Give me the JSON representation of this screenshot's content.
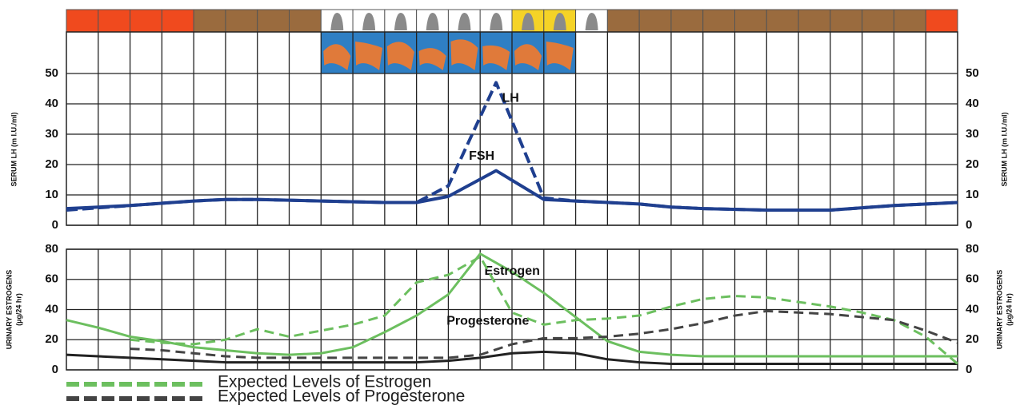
{
  "chart_data": [
    {
      "type": "line",
      "ylabel": [
        "SERUM LH (m I.U./ml)"
      ],
      "xlim": [
        0,
        28
      ],
      "ylim": [
        0,
        50
      ],
      "yticks": [
        0,
        10,
        20,
        30,
        40,
        50
      ],
      "grid": true,
      "x": [
        0,
        2,
        4,
        5,
        6,
        8,
        10,
        11,
        12,
        13.5,
        15,
        16,
        18,
        19,
        20,
        22,
        24,
        26,
        28
      ],
      "series": [
        {
          "name": "LH",
          "color": "#1f3f8f",
          "style": "dashed",
          "label": "inline",
          "values": [
            5,
            6.5,
            8,
            8.5,
            8.5,
            8,
            7.5,
            7.5,
            13,
            47,
            9,
            8,
            7,
            6,
            5.5,
            5,
            5,
            6.5,
            7.5
          ]
        },
        {
          "name": "FSH",
          "color": "#1f3f8f",
          "style": "solid",
          "label": "inline",
          "values": [
            5.5,
            6.5,
            8,
            8.5,
            8.5,
            8,
            7.5,
            7.5,
            9.5,
            18,
            8.5,
            8,
            7,
            6,
            5.5,
            5,
            5,
            6.5,
            7.5
          ]
        }
      ]
    },
    {
      "type": "line",
      "ylabel": [
        "URINARY ESTROGENS",
        "(µg/24 hr)"
      ],
      "xlim": [
        0,
        28
      ],
      "ylim": [
        0,
        80
      ],
      "yticks": [
        0,
        20,
        40,
        60,
        80
      ],
      "grid": true,
      "x": [
        0,
        1,
        2,
        3,
        4,
        5,
        6,
        7,
        8,
        9,
        10,
        11,
        12,
        13,
        14,
        15,
        16,
        17,
        18,
        19,
        20,
        21,
        22,
        23,
        24,
        25,
        26,
        27,
        28
      ],
      "series": [
        {
          "name": "Estrogen",
          "color": "#6cbf5f",
          "style": "solid",
          "label": "inline",
          "values": [
            33,
            28,
            22,
            19,
            15,
            13,
            11,
            10,
            11,
            15,
            25,
            36,
            50,
            77,
            65,
            51,
            35,
            19,
            12,
            10,
            9,
            9,
            9,
            9,
            9,
            9,
            9,
            9,
            9
          ]
        },
        {
          "name": "Progesterone",
          "color": "#222222",
          "style": "solid",
          "label": "inline",
          "values": [
            10,
            9,
            8,
            7,
            6,
            5,
            5,
            5,
            5,
            5,
            5,
            5,
            6,
            8,
            11,
            12,
            11,
            7,
            5,
            4,
            4,
            4,
            4,
            4,
            4,
            4,
            4,
            4,
            4
          ]
        },
        {
          "name": "Expected Levels of Estrogen",
          "color": "#6cbf5f",
          "style": "dashed",
          "label": "legend",
          "values": [
            null,
            null,
            20,
            18,
            17,
            20,
            27,
            22,
            26,
            30,
            36,
            58,
            63,
            75,
            38,
            30,
            33,
            34,
            36,
            42,
            47,
            49,
            48,
            45,
            42,
            38,
            33,
            22,
            4
          ]
        },
        {
          "name": "Expected Levels of Progesterone",
          "color": "#444444",
          "style": "dashed",
          "label": "legend",
          "values": [
            null,
            null,
            14,
            13,
            11,
            9,
            8,
            8,
            8,
            8,
            8,
            8,
            8,
            10,
            17,
            21,
            21,
            22,
            24,
            27,
            31,
            36,
            39,
            38,
            37,
            35,
            33,
            26,
            18
          ]
        }
      ]
    }
  ]
}
